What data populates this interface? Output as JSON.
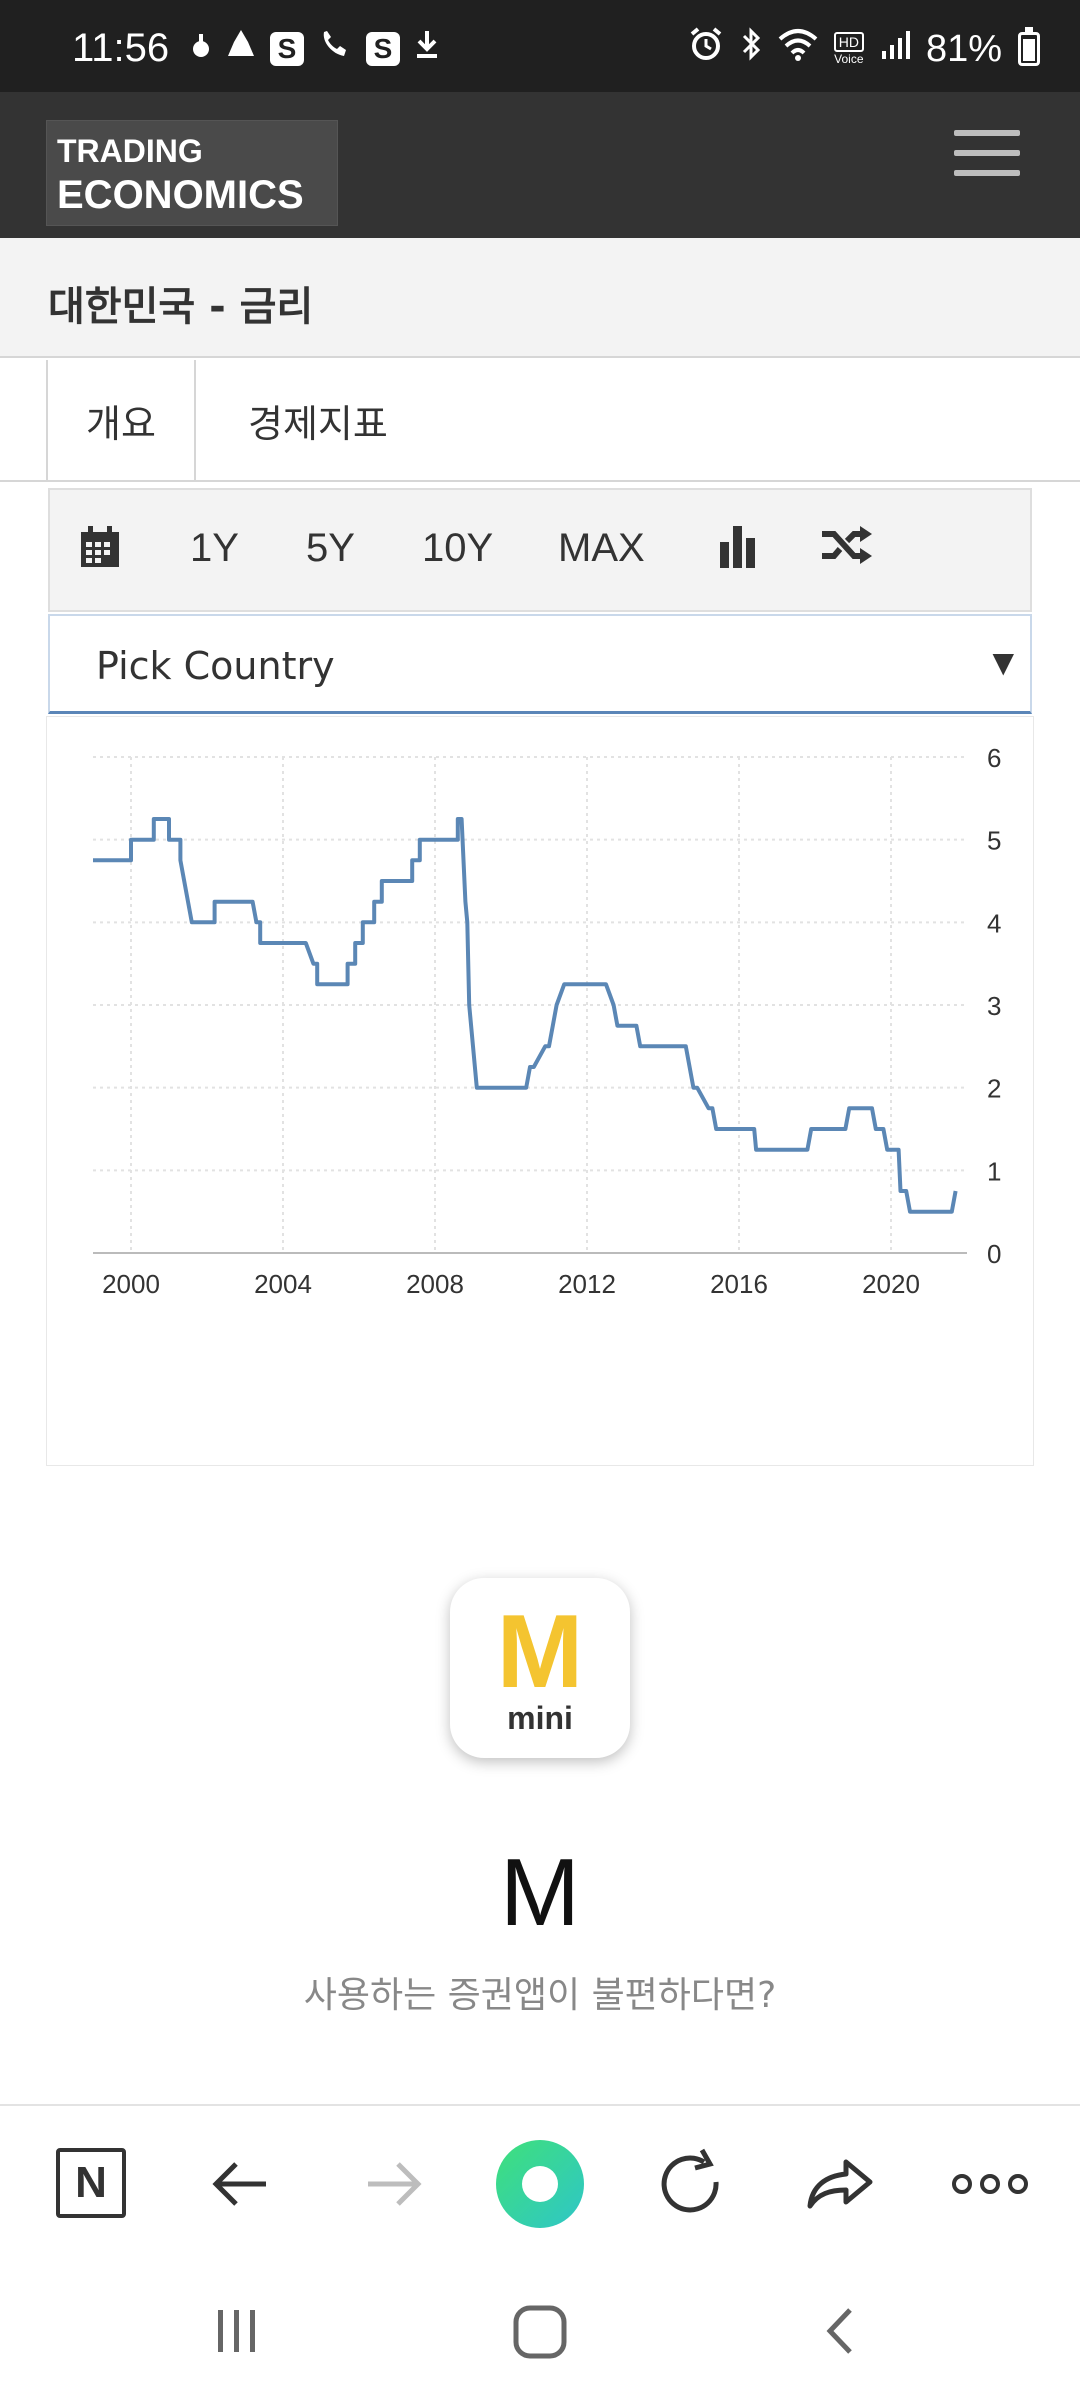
{
  "status_bar": {
    "time": "11:56",
    "battery": "81%",
    "hd_label": "HD",
    "hd_voice": "Voice",
    "left_icons": [
      "notification-icon",
      "notification-icon",
      "s-app-icon",
      "missed-call-icon",
      "s-app-icon",
      "download-icon"
    ],
    "right_icons": [
      "alarm-icon",
      "bluetooth-icon",
      "wifi-icon",
      "hd-voice-icon",
      "signal-icon",
      "battery-icon"
    ],
    "s_letter": "S"
  },
  "header": {
    "logo_line1": "TRADING",
    "logo_line2": "ECONOMICS"
  },
  "page": {
    "title": "대한민국 - 금리"
  },
  "tabs": [
    {
      "label": "개요"
    },
    {
      "label": "경제지표"
    }
  ],
  "toolbar": {
    "ranges": [
      "1Y",
      "5Y",
      "10Y",
      "MAX"
    ]
  },
  "country_select": {
    "value": "Pick Country"
  },
  "chart_data": {
    "type": "line",
    "title": "",
    "xlabel": "",
    "ylabel": "",
    "x_ticks": [
      "2000",
      "2004",
      "2008",
      "2012",
      "2016",
      "2020"
    ],
    "y_ticks": [
      "0",
      "1",
      "2",
      "3",
      "4",
      "5",
      "6"
    ],
    "xlim": [
      1999.0,
      2022.0
    ],
    "ylim": [
      0,
      6
    ],
    "grid": true,
    "legend": "none",
    "line_color": "#5b87b5",
    "series": [
      {
        "x": [
          1999.0,
          2000.0,
          2000.0,
          2000.6,
          2000.6,
          2001.0,
          2001.0,
          2001.3,
          2001.3,
          2001.4,
          2001.6,
          2002.2,
          2002.2,
          2003.2,
          2003.3,
          2003.4,
          2003.4,
          2004.6,
          2004.8,
          2004.9,
          2004.9,
          2005.7,
          2005.7,
          2005.9,
          2005.9,
          2006.1,
          2006.1,
          2006.4,
          2006.4,
          2006.6,
          2006.6,
          2007.4,
          2007.4,
          2007.6,
          2007.6,
          2008.6,
          2008.6,
          2008.7,
          2008.8,
          2008.85,
          2008.9,
          2009.0,
          2009.1,
          2010.4,
          2010.5,
          2010.6,
          2010.9,
          2011.0,
          2011.1,
          2011.2,
          2011.4,
          2011.5,
          2012.5,
          2012.7,
          2012.8,
          2013.3,
          2013.4,
          2014.6,
          2014.7,
          2014.8,
          2014.9,
          2015.2,
          2015.3,
          2015.4,
          2015.45,
          2016.4,
          2016.45,
          2017.8,
          2017.9,
          2018.8,
          2018.9,
          2019.5,
          2019.6,
          2019.8,
          2019.9,
          2020.2,
          2020.25,
          2020.4,
          2020.5,
          2021.6,
          2021.7
        ],
        "y": [
          4.75,
          4.75,
          5.0,
          5.0,
          5.25,
          5.25,
          5.0,
          5.0,
          4.75,
          4.5,
          4.0,
          4.0,
          4.25,
          4.25,
          4.0,
          4.0,
          3.75,
          3.75,
          3.5,
          3.5,
          3.25,
          3.25,
          3.5,
          3.5,
          3.75,
          3.75,
          4.0,
          4.0,
          4.25,
          4.25,
          4.5,
          4.5,
          4.75,
          4.75,
          5.0,
          5.0,
          5.25,
          5.25,
          4.25,
          4.0,
          3.0,
          2.5,
          2.0,
          2.0,
          2.25,
          2.25,
          2.5,
          2.5,
          2.75,
          3.0,
          3.25,
          3.25,
          3.25,
          3.0,
          2.75,
          2.75,
          2.5,
          2.5,
          2.25,
          2.0,
          2.0,
          1.75,
          1.75,
          1.5,
          1.5,
          1.5,
          1.25,
          1.25,
          1.5,
          1.5,
          1.75,
          1.75,
          1.5,
          1.5,
          1.25,
          1.25,
          0.75,
          0.75,
          0.5,
          0.5,
          0.75
        ]
      }
    ]
  },
  "promo": {
    "icon_letter": "M",
    "icon_sub": "mini",
    "title": "M",
    "subtitle": "사용하는 증권앱이 불편하다면?"
  },
  "browser_bar": {
    "n_label": "N",
    "items": [
      "naver-icon",
      "back-arrow-icon",
      "forward-arrow-icon",
      "home-icon",
      "refresh-icon",
      "share-icon",
      "more-icon"
    ]
  },
  "nav_bar": {
    "items": [
      "recent-apps-icon",
      "home-button-icon",
      "back-button-icon"
    ]
  }
}
